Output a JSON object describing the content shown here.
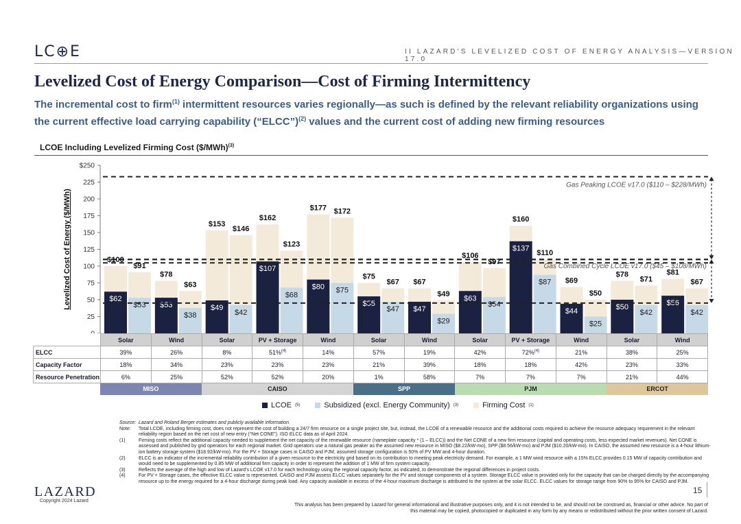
{
  "header": {
    "logo": "LC⊕E",
    "tag": "II   LAZARD'S LEVELIZED COST OF ENERGY ANALYSIS—VERSION 17.0",
    "title": "Levelized Cost of Energy Comparison—Cost of Firming Intermittency",
    "subtitle_a": "The incremental cost to firm",
    "subtitle_sup1": "(1)",
    "subtitle_b": " intermittent resources varies regionally—as such is defined by the relevant reliability organizations using the current effective load carrying capability (“ELCC”)",
    "subtitle_sup2": "(2)",
    "subtitle_c": " values and the current cost of adding new firming resources"
  },
  "chart_data": {
    "type": "bar",
    "stacked": true,
    "title": "LCOE Including Levelized Firming Cost ($/MWh)",
    "title_sup": "(3)",
    "ylabel": "Levelized Cost of Energy ($/MWh)",
    "ylim": [
      0,
      250
    ],
    "yticks": [
      "0",
      "25",
      "50",
      "75",
      "100",
      "125",
      "150",
      "175",
      "200",
      "225",
      "$250"
    ],
    "colors": {
      "lcoe": "#1b2140",
      "subsidized": "#c5d9e6",
      "firming": "#f4ead9"
    },
    "groups": [
      {
        "region": "MISO",
        "tech": "Solar",
        "unsub": {
          "base": 62,
          "base_label": "$62",
          "total": 100,
          "total_label": "$100"
        },
        "sub": {
          "base": 53,
          "base_label": "$53",
          "total": 91,
          "total_label": "$91"
        }
      },
      {
        "region": "MISO",
        "tech": "Wind",
        "unsub": {
          "base": 53,
          "base_label": "$53",
          "total": 78,
          "total_label": "$78"
        },
        "sub": {
          "base": 38,
          "base_label": "$38",
          "total": 63,
          "total_label": "$63"
        }
      },
      {
        "region": "CAISO",
        "tech": "Solar",
        "unsub": {
          "base": 49,
          "base_label": "$49",
          "total": 153,
          "total_label": "$153"
        },
        "sub": {
          "base": 42,
          "base_label": "$42",
          "total": 146,
          "total_label": "$146"
        }
      },
      {
        "region": "CAISO",
        "tech": "PV + Storage",
        "unsub": {
          "base": 107,
          "base_label": "$107",
          "total": 162,
          "total_label": "$162"
        },
        "sub": {
          "base": 68,
          "base_label": "$68",
          "total": 123,
          "total_label": "$123"
        }
      },
      {
        "region": "CAISO",
        "tech": "Wind",
        "unsub": {
          "base": 80,
          "base_label": "$80",
          "total": 177,
          "total_label": "$177"
        },
        "sub": {
          "base": 75,
          "base_label": "$75",
          "total": 172,
          "total_label": "$172"
        }
      },
      {
        "region": "SPP",
        "tech": "Solar",
        "unsub": {
          "base": 55,
          "base_label": "$55",
          "total": 75,
          "total_label": "$75"
        },
        "sub": {
          "base": 47,
          "base_label": "$47",
          "total": 67,
          "total_label": "$67"
        }
      },
      {
        "region": "SPP",
        "tech": "Wind",
        "unsub": {
          "base": 47,
          "base_label": "$47",
          "total": 67,
          "total_label": "$67"
        },
        "sub": {
          "base": 29,
          "base_label": "$29",
          "total": 49,
          "total_label": "$49"
        }
      },
      {
        "region": "PJM",
        "tech": "Solar",
        "unsub": {
          "base": 63,
          "base_label": "$63",
          "total": 106,
          "total_label": "$106"
        },
        "sub": {
          "base": 54,
          "base_label": "$54",
          "total": 97,
          "total_label": "$97"
        }
      },
      {
        "region": "PJM",
        "tech": "PV + Storage",
        "unsub": {
          "base": 137,
          "base_label": "$137",
          "total": 160,
          "total_label": "$160"
        },
        "sub": {
          "base": 87,
          "base_label": "$87",
          "total": 110,
          "total_label": "$110"
        }
      },
      {
        "region": "PJM",
        "tech": "Wind",
        "unsub": {
          "base": 44,
          "base_label": "$44",
          "total": 69,
          "total_label": "$69"
        },
        "sub": {
          "base": 25,
          "base_label": "$25",
          "total": 50,
          "total_label": "$50"
        }
      },
      {
        "region": "ERCOT",
        "tech": "Solar",
        "unsub": {
          "base": 50,
          "base_label": "$50",
          "total": 78,
          "total_label": "$78"
        },
        "sub": {
          "base": 42,
          "base_label": "$42",
          "total": 71,
          "total_label": "$71"
        }
      },
      {
        "region": "ERCOT",
        "tech": "Wind",
        "unsub": {
          "base": 56,
          "base_label": "$56",
          "total": 81,
          "total_label": "$81"
        },
        "sub": {
          "base": 42,
          "base_label": "$42",
          "total": 67,
          "total_label": "$67"
        }
      }
    ],
    "reference_bands": [
      {
        "label": "Gas Peaking LCOE v17.0 ($110 – $228/MWh)",
        "low": 110,
        "high": 228,
        "high_line": 233
      },
      {
        "label": "Gas Combined Cycle LCOE v17.0 ($45 – $108/MWh)",
        "low": 45,
        "high": 108,
        "high_line": 110
      }
    ],
    "legend": [
      {
        "name": "LCOE",
        "sup": "(5)",
        "key": "lcoe"
      },
      {
        "name": "Subsidized (excl. Energy Community)",
        "sup": "(3)",
        "key": "subsidized"
      },
      {
        "name": "Firming Cost",
        "sup": "(1)",
        "key": "firming"
      }
    ]
  },
  "metrics": {
    "columns": [
      "Solar",
      "Wind",
      "Solar",
      "PV + Storage",
      "Wind",
      "Solar",
      "Wind",
      "Solar",
      "PV + Storage",
      "Wind",
      "Solar",
      "Wind"
    ],
    "rows": [
      {
        "label": "ELCC",
        "values": [
          "39%",
          "26%",
          "8%",
          "51%",
          "14%",
          "57%",
          "19%",
          "42%",
          "72%",
          "21%",
          "38%",
          "25%"
        ],
        "sups": [
          "",
          "",
          "",
          "(4)",
          "",
          "",
          "",
          "",
          "(4)",
          "",
          "",
          ""
        ]
      },
      {
        "label": "Capacity Factor",
        "values": [
          "18%",
          "34%",
          "23%",
          "23%",
          "23%",
          "21%",
          "39%",
          "18%",
          "18%",
          "42%",
          "23%",
          "33%"
        ]
      },
      {
        "label": "Resource Penetration",
        "values": [
          "6%",
          "25%",
          "52%",
          "52%",
          "20%",
          "1%",
          "58%",
          "7%",
          "7%",
          "7%",
          "21%",
          "44%"
        ]
      }
    ]
  },
  "regions": [
    {
      "name": "MISO",
      "span": 2,
      "color": "#7d86b3"
    },
    {
      "name": "CAISO",
      "span": 3,
      "color": "#d4d4d4"
    },
    {
      "name": "SPP",
      "span": 2,
      "color": "#4a7089"
    },
    {
      "name": "PJM",
      "span": 3,
      "color": "#b9dcb0"
    },
    {
      "name": "ERCOT",
      "span": 2,
      "color": "#ddc79b"
    }
  ],
  "notes": [
    {
      "key": "Source:",
      "text": "Lazard and Roland Berger estimates and publicly available information.",
      "italic": true
    },
    {
      "key": "Note:",
      "text": "Total LCOE, including firming cost, does not represent the cost of building a 24/7 firm resource on a single project site, but, instead, the LCOE of a renewable resource and the additional costs required to achieve the resource adequacy requirement in the relevant reliability region based on the net cost of new entry (“Net CONE”). ISO ELCC data as of April 2024."
    },
    {
      "key": "(1)",
      "text": "Firming costs reflect the additional capacity needed to supplement the net capacity of the renewable resource (nameplate capacity * (1 – ELCC)) and the Net CONE of a new firm resource (capital and operating costs, less expected market revenues). Net CONE is assessed and published by grid operators for each regional market. Grid operators use a natural gas peaker as the assumed new resource in MISO ($8.22/kW-mo), SPP ($8.56/kW-mo) and PJM ($10.20/kW-mo). In CAISO, the assumed new resource is a 4-hour lithium-ion battery storage system ($18.92/kW-mo). For the PV + Storage cases in CAISO and PJM, assumed storage configuration is 50% of PV MW and 4-hour duration."
    },
    {
      "key": "(2)",
      "text": "ELCC is an indicator of the incremental reliability contribution of a given resource to the electricity grid based on its contribution to meeting peak electricity demand. For example, a 1 MW wind resource with a 15% ELCC provides 0.15 MW of capacity contribution and would need to be supplemented by 0.85 MW of additional firm capacity in order to represent the addition of 1 MW of firm system capacity."
    },
    {
      "key": "(3)",
      "text": "Reflects the average of the high and low of Lazard’s LCOE v17.0 for each technology using the regional capacity factor, as indicated, to demonstrate the regional differences in project costs."
    },
    {
      "key": "(4)",
      "text": "For PV + Storage cases, the effective ELCC value is represented. CAISO and PJM assess ELCC values separately for the PV and storage components of a system. Storage ELCC value is provided only for the capacity that can be charged directly by the accompanying resource up to the energy required for a 4-hour discharge during peak load. Any capacity available in excess of the 4-hour maximum discharge is attributed to the system at the solar ELCC. ELCC values for storage range from 90% to 95% for CAISO and PJM."
    }
  ],
  "footer": {
    "logo": "LAZARD",
    "copyright": "Copyright 2024 Lazard",
    "page": "15",
    "disclaimer": "This analysis has been prepared by Lazard for general informational and illustrative purposes only, and it is not intended to be, and should not be construed as, financial or other advice. No part of this material may be copied, photocopied or duplicated in any form by any means or redistributed without the prior written consent of Lazard."
  }
}
